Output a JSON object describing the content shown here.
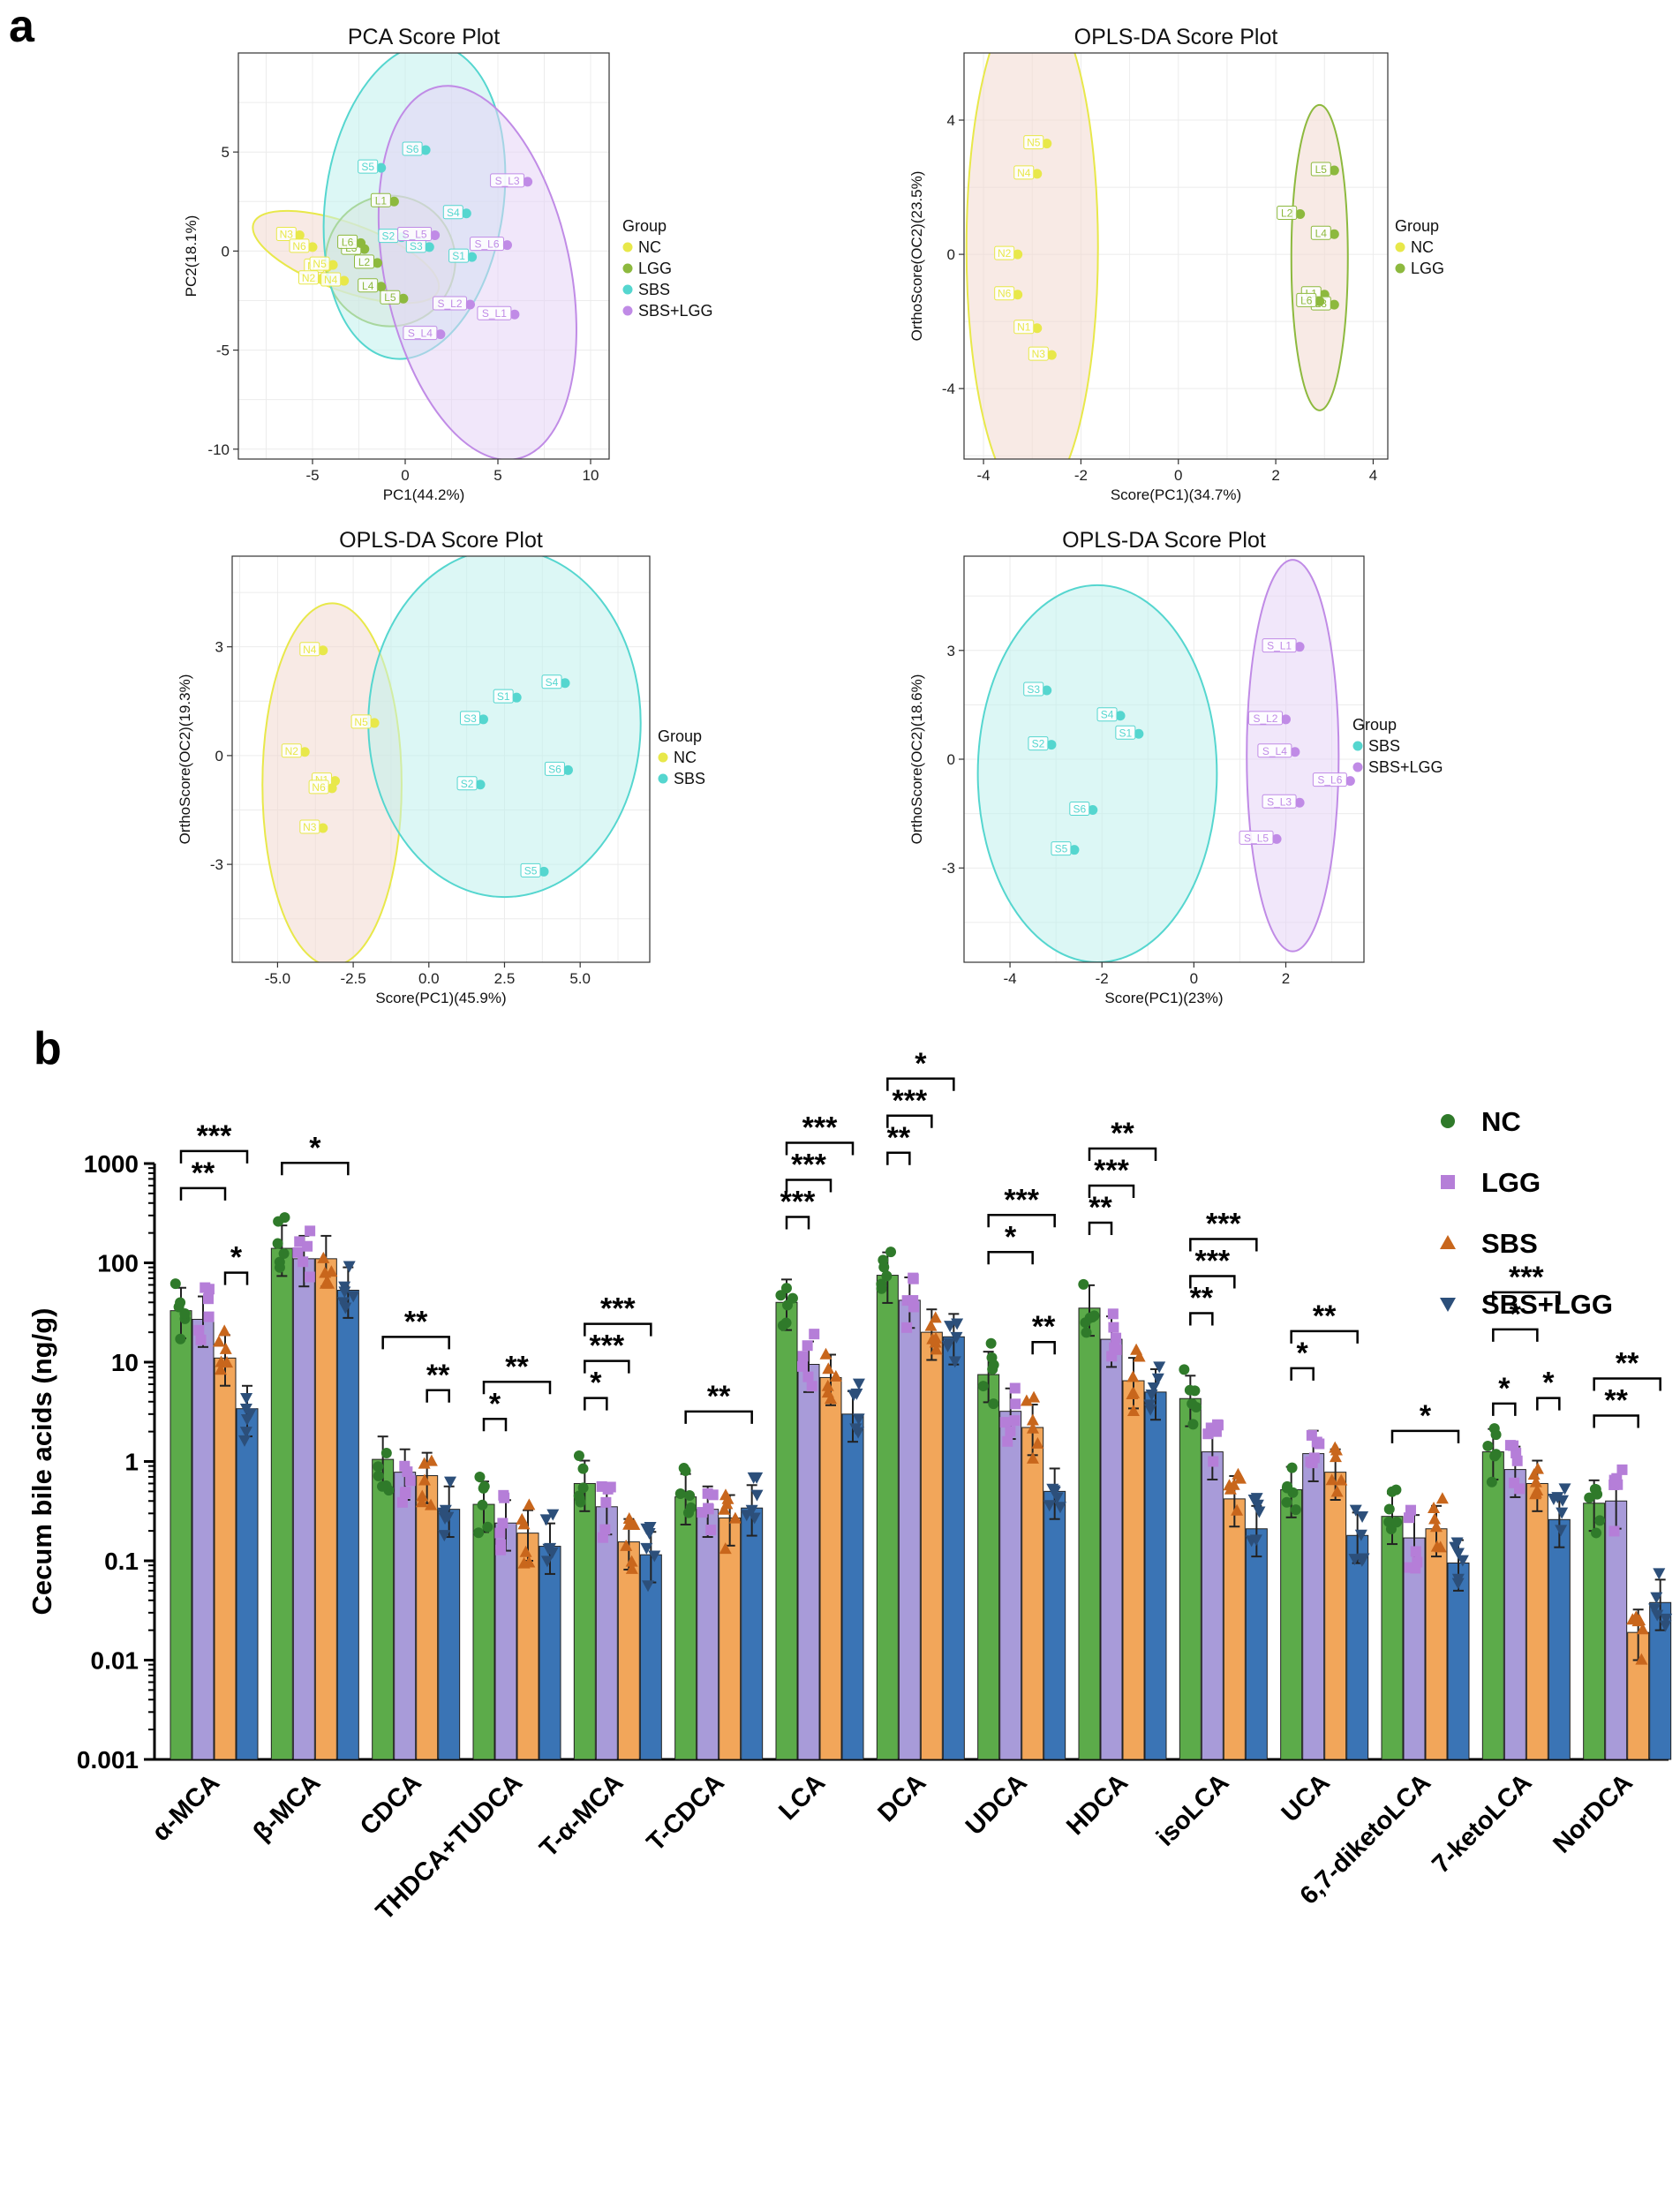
{
  "panel_labels": {
    "a": "a",
    "b": "b"
  },
  "colors": {
    "NC": "#e8e84a",
    "LGG": "#8db93e",
    "SBS": "#55d6cf",
    "SBS+LGG": "#c08be6",
    "bar_NC": "#5cab4a",
    "bar_LGG": "#a89bd9",
    "bar_SBS": "#f2a65a",
    "bar_SBSLGG": "#3a74b5",
    "pt_NC": "#2f7a2a",
    "pt_LGG": "#b57ed8",
    "pt_SBS": "#c8661c",
    "pt_SBSLGG": "#2c4f7a"
  },
  "chart_data": [
    {
      "type": "scatter",
      "id": "pca",
      "title": "PCA Score Plot",
      "xlabel": "PC1(44.2%)",
      "ylabel": "PC2(18.1%)",
      "xlim": [
        -9,
        11
      ],
      "ylim": [
        -10.5,
        10
      ],
      "xticks": [
        -5,
        0,
        5,
        10
      ],
      "yticks": [
        -10,
        -5,
        0,
        5
      ],
      "legend": {
        "title": "Group",
        "entries": [
          "NC",
          "LGG",
          "SBS",
          "SBS+LGG"
        ]
      },
      "ellipses": [
        {
          "group": "NC",
          "cx": -3.2,
          "cy": -0.3,
          "rx": 5.3,
          "ry": 1.7,
          "angle": -20
        },
        {
          "group": "LGG",
          "cx": -0.8,
          "cy": -0.5,
          "rx": 3.5,
          "ry": 3.3,
          "angle": -15
        },
        {
          "group": "SBS",
          "cx": 0.5,
          "cy": 2.5,
          "rx": 4.8,
          "ry": 8.0,
          "angle": -8
        },
        {
          "group": "SBS+LGG",
          "cx": 3.9,
          "cy": -1.1,
          "rx": 5.0,
          "ry": 9.6,
          "angle": 12
        }
      ],
      "points": [
        {
          "label": "N1",
          "group": "NC",
          "x": -4.2,
          "y": -0.8
        },
        {
          "label": "N2",
          "group": "NC",
          "x": -4.5,
          "y": -1.4
        },
        {
          "label": "N3",
          "group": "NC",
          "x": -5.7,
          "y": 0.8
        },
        {
          "label": "N4",
          "group": "NC",
          "x": -3.3,
          "y": -1.5
        },
        {
          "label": "N5",
          "group": "NC",
          "x": -3.9,
          "y": -0.7
        },
        {
          "label": "N6",
          "group": "NC",
          "x": -5.0,
          "y": 0.2
        },
        {
          "label": "L1",
          "group": "LGG",
          "x": -0.6,
          "y": 2.5
        },
        {
          "label": "L2",
          "group": "LGG",
          "x": -1.5,
          "y": -0.6
        },
        {
          "label": "L3",
          "group": "LGG",
          "x": -2.2,
          "y": 0.1
        },
        {
          "label": "L4",
          "group": "LGG",
          "x": -1.3,
          "y": -1.8
        },
        {
          "label": "L5",
          "group": "LGG",
          "x": -0.1,
          "y": -2.4
        },
        {
          "label": "L6",
          "group": "LGG",
          "x": -2.4,
          "y": 0.4
        },
        {
          "label": "S1",
          "group": "SBS",
          "x": 3.6,
          "y": -0.3
        },
        {
          "label": "S2",
          "group": "SBS",
          "x": -0.2,
          "y": 0.7
        },
        {
          "label": "S3",
          "group": "SBS",
          "x": 1.3,
          "y": 0.2
        },
        {
          "label": "S4",
          "group": "SBS",
          "x": 3.3,
          "y": 1.9
        },
        {
          "label": "S5",
          "group": "SBS",
          "x": -1.3,
          "y": 4.2
        },
        {
          "label": "S6",
          "group": "SBS",
          "x": 1.1,
          "y": 5.1
        },
        {
          "label": "S_L1",
          "group": "SBS+LGG",
          "x": 5.9,
          "y": -3.2
        },
        {
          "label": "S_L2",
          "group": "SBS+LGG",
          "x": 3.5,
          "y": -2.7
        },
        {
          "label": "S_L3",
          "group": "SBS+LGG",
          "x": 6.6,
          "y": 3.5
        },
        {
          "label": "S_L4",
          "group": "SBS+LGG",
          "x": 1.9,
          "y": -4.2
        },
        {
          "label": "S_L5",
          "group": "SBS+LGG",
          "x": 1.6,
          "y": 0.8
        },
        {
          "label": "S_L6",
          "group": "SBS+LGG",
          "x": 5.5,
          "y": 0.3
        }
      ]
    },
    {
      "type": "scatter",
      "id": "oplsA",
      "title": "OPLS-DA Score Plot",
      "xlabel": "Score(PC1)(34.7%)",
      "ylabel": "OrthoScore(OC2)(23.5%)",
      "xlim": [
        -4.4,
        4.3
      ],
      "ylim": [
        -6.1,
        6.0
      ],
      "xticks": [
        -4,
        -2,
        0,
        2,
        4
      ],
      "yticks": [
        -4,
        0,
        4
      ],
      "legend": {
        "title": "Group",
        "entries": [
          "NC",
          "LGG"
        ]
      },
      "ellipses": [
        {
          "group": "NC",
          "cx": -3.0,
          "cy": 0.2,
          "rx": 1.35,
          "ry": 7.6,
          "angle": 0
        },
        {
          "group": "LGG",
          "cx": 2.9,
          "cy": -0.1,
          "rx": 0.58,
          "ry": 4.55,
          "angle": 0
        }
      ],
      "points": [
        {
          "label": "N1",
          "group": "NC",
          "x": -2.9,
          "y": -2.2
        },
        {
          "label": "N2",
          "group": "NC",
          "x": -3.3,
          "y": 0.0
        },
        {
          "label": "N3",
          "group": "NC",
          "x": -2.6,
          "y": -3.0
        },
        {
          "label": "N4",
          "group": "NC",
          "x": -2.9,
          "y": 2.4
        },
        {
          "label": "N5",
          "group": "NC",
          "x": -2.7,
          "y": 3.3
        },
        {
          "label": "N6",
          "group": "NC",
          "x": -3.3,
          "y": -1.2
        },
        {
          "label": "L1",
          "group": "LGG",
          "x": 3.0,
          "y": -1.2
        },
        {
          "label": "L2",
          "group": "LGG",
          "x": 2.5,
          "y": 1.2
        },
        {
          "label": "L3",
          "group": "LGG",
          "x": 3.2,
          "y": -1.5
        },
        {
          "label": "L4",
          "group": "LGG",
          "x": 3.2,
          "y": 0.6
        },
        {
          "label": "L5",
          "group": "LGG",
          "x": 3.2,
          "y": 2.5
        },
        {
          "label": "L6",
          "group": "LGG",
          "x": 2.9,
          "y": -1.4
        }
      ]
    },
    {
      "type": "scatter",
      "id": "oplsB",
      "title": "OPLS-DA Score Plot",
      "xlabel": "Score(PC1)(45.9%)",
      "ylabel": "OrthoScore(OC2)(19.3%)",
      "xlim": [
        -6.5,
        7.3
      ],
      "ylim": [
        -5.7,
        5.5
      ],
      "xticks": [
        -5.0,
        -2.5,
        0.0,
        2.5,
        5.0
      ],
      "tick_labels_x": [
        "-5.0",
        "-2.5",
        "0.0",
        "2.5",
        "5.0"
      ],
      "yticks": [
        -3,
        0,
        3
      ],
      "legend": {
        "title": "Group",
        "entries": [
          "NC",
          "SBS"
        ]
      },
      "ellipses": [
        {
          "group": "NC",
          "cx": -3.2,
          "cy": -0.8,
          "rx": 2.3,
          "ry": 5.0,
          "angle": 0
        },
        {
          "group": "SBS",
          "cx": 2.5,
          "cy": 0.9,
          "rx": 4.5,
          "ry": 4.8,
          "angle": 0
        }
      ],
      "points": [
        {
          "label": "N1",
          "group": "NC",
          "x": -3.1,
          "y": -0.7
        },
        {
          "label": "N2",
          "group": "NC",
          "x": -4.1,
          "y": 0.1
        },
        {
          "label": "N3",
          "group": "NC",
          "x": -3.5,
          "y": -2.0
        },
        {
          "label": "N4",
          "group": "NC",
          "x": -3.5,
          "y": 2.9
        },
        {
          "label": "N5",
          "group": "NC",
          "x": -1.8,
          "y": 0.9
        },
        {
          "label": "N6",
          "group": "NC",
          "x": -3.2,
          "y": -0.9
        },
        {
          "label": "S1",
          "group": "SBS",
          "x": 2.9,
          "y": 1.6
        },
        {
          "label": "S2",
          "group": "SBS",
          "x": 1.7,
          "y": -0.8
        },
        {
          "label": "S3",
          "group": "SBS",
          "x": 1.8,
          "y": 1.0
        },
        {
          "label": "S4",
          "group": "SBS",
          "x": 4.5,
          "y": 2.0
        },
        {
          "label": "S5",
          "group": "SBS",
          "x": 3.8,
          "y": -3.2
        },
        {
          "label": "S6",
          "group": "SBS",
          "x": 4.6,
          "y": -0.4
        }
      ]
    },
    {
      "type": "scatter",
      "id": "oplsC",
      "title": "OPLS-DA Score Plot",
      "xlabel": "Score(PC1)(23%)",
      "ylabel": "OrthoScore(OC2)(18.6%)",
      "xlim": [
        -5.0,
        3.7
      ],
      "ylim": [
        -5.6,
        5.6
      ],
      "xticks": [
        -4,
        -2,
        0,
        2
      ],
      "yticks": [
        -3,
        0,
        3
      ],
      "legend": {
        "title": "Group",
        "entries": [
          "SBS",
          "SBS+LGG"
        ]
      },
      "ellipses": [
        {
          "group": "SBS",
          "cx": -2.1,
          "cy": -0.4,
          "rx": 2.6,
          "ry": 5.2,
          "angle": 0
        },
        {
          "group": "SBS+LGG",
          "cx": 2.15,
          "cy": 0.1,
          "rx": 1.0,
          "ry": 5.4,
          "angle": 0
        }
      ],
      "points": [
        {
          "label": "S1",
          "group": "SBS",
          "x": -1.2,
          "y": 0.7
        },
        {
          "label": "S2",
          "group": "SBS",
          "x": -3.1,
          "y": 0.4
        },
        {
          "label": "S3",
          "group": "SBS",
          "x": -3.2,
          "y": 1.9
        },
        {
          "label": "S4",
          "group": "SBS",
          "x": -1.6,
          "y": 1.2
        },
        {
          "label": "S5",
          "group": "SBS",
          "x": -2.6,
          "y": -2.5
        },
        {
          "label": "S6",
          "group": "SBS",
          "x": -2.2,
          "y": -1.4
        },
        {
          "label": "S_L1",
          "group": "SBS+LGG",
          "x": 2.3,
          "y": 3.1
        },
        {
          "label": "S_L2",
          "group": "SBS+LGG",
          "x": 2.0,
          "y": 1.1
        },
        {
          "label": "S_L3",
          "group": "SBS+LGG",
          "x": 2.3,
          "y": -1.2
        },
        {
          "label": "S_L4",
          "group": "SBS+LGG",
          "x": 2.2,
          "y": 0.2
        },
        {
          "label": "S_L5",
          "group": "SBS+LGG",
          "x": 1.8,
          "y": -2.2
        },
        {
          "label": "S_L6",
          "group": "SBS+LGG",
          "x": 3.4,
          "y": -0.6
        }
      ]
    },
    {
      "type": "bar",
      "id": "bile",
      "scale": "log",
      "ylim": [
        0.001,
        1000
      ],
      "ylabel": "Cecum bile acids (ng/g)",
      "yticks": [
        0.001,
        0.01,
        0.1,
        1,
        10,
        100,
        1000
      ],
      "ytick_labels": [
        "0.001",
        "0.01",
        "0.1",
        "1",
        "10",
        "100",
        "1000"
      ],
      "categories": [
        "α-MCA",
        "β-MCA",
        "CDCA",
        "THDCA+TUDCA",
        "T-α-MCA",
        "T-CDCA",
        "LCA",
        "DCA",
        "UDCA",
        "HDCA",
        "isoLCA",
        "UCA",
        "6,7-diketoLCA",
        "7-ketoLCA",
        "NorDCA"
      ],
      "legend": [
        "NC",
        "LGG",
        "SBS",
        "SBS+LGG"
      ],
      "series": [
        {
          "name": "NC",
          "values": [
            33,
            140,
            1.05,
            0.37,
            0.6,
            0.44,
            40,
            75,
            7.5,
            35,
            4.3,
            0.52,
            0.28,
            1.25,
            0.38
          ]
        },
        {
          "name": "LGG",
          "values": [
            27,
            110,
            0.78,
            0.24,
            0.35,
            0.33,
            9.5,
            42,
            3.2,
            17,
            1.25,
            1.2,
            0.17,
            0.83,
            0.4
          ]
        },
        {
          "name": "SBS",
          "values": [
            11,
            110,
            0.72,
            0.19,
            0.155,
            0.27,
            7.0,
            20,
            2.2,
            6.5,
            0.42,
            0.78,
            0.21,
            0.6,
            0.019
          ]
        },
        {
          "name": "SBS+LGG",
          "values": [
            3.4,
            53,
            0.33,
            0.14,
            0.115,
            0.34,
            3.0,
            18,
            0.5,
            5.0,
            0.21,
            0.18,
            0.095,
            0.26,
            0.038
          ]
        }
      ],
      "significance": [
        {
          "cat": 0,
          "a": 0,
          "b": 3,
          "label": "***",
          "level": 3
        },
        {
          "cat": 0,
          "a": 0,
          "b": 2,
          "label": "**",
          "level": 2
        },
        {
          "cat": 0,
          "a": 2,
          "b": 3,
          "label": "*",
          "level": 1
        },
        {
          "cat": 1,
          "a": 0,
          "b": 3,
          "label": "*",
          "level": 1
        },
        {
          "cat": 2,
          "a": 0,
          "b": 3,
          "label": "**",
          "level": 2
        },
        {
          "cat": 2,
          "a": 2,
          "b": 3,
          "label": "**",
          "level": 1
        },
        {
          "cat": 3,
          "a": 0,
          "b": 3,
          "label": "**",
          "level": 2
        },
        {
          "cat": 3,
          "a": 0,
          "b": 1,
          "label": "*",
          "level": 1
        },
        {
          "cat": 4,
          "a": 0,
          "b": 3,
          "label": "***",
          "level": 3
        },
        {
          "cat": 4,
          "a": 0,
          "b": 2,
          "label": "***",
          "level": 2
        },
        {
          "cat": 4,
          "a": 0,
          "b": 1,
          "label": "*",
          "level": 1
        },
        {
          "cat": 5,
          "a": 0,
          "b": 3,
          "label": "**",
          "level": 1
        },
        {
          "cat": 6,
          "a": 0,
          "b": 3,
          "label": "***",
          "level": 3
        },
        {
          "cat": 6,
          "a": 0,
          "b": 2,
          "label": "***",
          "level": 2
        },
        {
          "cat": 6,
          "a": 0,
          "b": 1,
          "label": "***",
          "level": 1
        },
        {
          "cat": 7,
          "a": 0,
          "b": 3,
          "label": "*",
          "level": 4
        },
        {
          "cat": 7,
          "a": 0,
          "b": 2,
          "label": "***",
          "level": 3
        },
        {
          "cat": 7,
          "a": 0,
          "b": 1,
          "label": "**",
          "level": 2
        },
        {
          "cat": 8,
          "a": 0,
          "b": 3,
          "label": "***",
          "level": 3
        },
        {
          "cat": 8,
          "a": 0,
          "b": 2,
          "label": "*",
          "level": 2
        },
        {
          "cat": 8,
          "a": 2,
          "b": 3,
          "label": "**",
          "level": 1
        },
        {
          "cat": 9,
          "a": 0,
          "b": 3,
          "label": "**",
          "level": 3
        },
        {
          "cat": 9,
          "a": 0,
          "b": 2,
          "label": "***",
          "level": 2
        },
        {
          "cat": 9,
          "a": 0,
          "b": 1,
          "label": "**",
          "level": 1
        },
        {
          "cat": 10,
          "a": 0,
          "b": 3,
          "label": "***",
          "level": 3
        },
        {
          "cat": 10,
          "a": 0,
          "b": 2,
          "label": "***",
          "level": 2
        },
        {
          "cat": 10,
          "a": 0,
          "b": 1,
          "label": "**",
          "level": 1
        },
        {
          "cat": 11,
          "a": 0,
          "b": 3,
          "label": "**",
          "level": 2
        },
        {
          "cat": 11,
          "a": 0,
          "b": 1,
          "label": "*",
          "level": 1
        },
        {
          "cat": 12,
          "a": 0,
          "b": 3,
          "label": "*",
          "level": 1
        },
        {
          "cat": 13,
          "a": 0,
          "b": 3,
          "label": "***",
          "level": 3
        },
        {
          "cat": 13,
          "a": 0,
          "b": 2,
          "label": "*",
          "level": 2
        },
        {
          "cat": 13,
          "a": 2,
          "b": 3,
          "label": "*",
          "level": 1
        },
        {
          "cat": 13,
          "a": 0,
          "b": 1,
          "label": "*",
          "level": 0
        },
        {
          "cat": 14,
          "a": 0,
          "b": 3,
          "label": "**",
          "level": 2
        },
        {
          "cat": 14,
          "a": 0,
          "b": 2,
          "label": "**",
          "level": 1
        }
      ]
    }
  ]
}
